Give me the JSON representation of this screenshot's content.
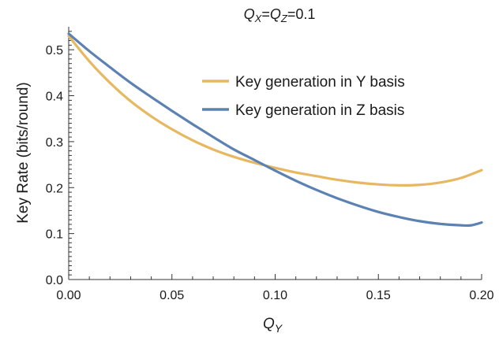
{
  "chart_data": {
    "type": "line",
    "title_parts": [
      {
        "text": "Q",
        "italic": true
      },
      {
        "text": "X",
        "italic": true,
        "sub": true
      },
      {
        "text": "=",
        "italic": false
      },
      {
        "text": "Q",
        "italic": true
      },
      {
        "text": "Z",
        "italic": true,
        "sub": true
      },
      {
        "text": "=0.1",
        "italic": false
      }
    ],
    "xlabel_main": "Q",
    "xlabel_sub": "Y",
    "ylabel": "Key Rate (bits/round)",
    "xlim": [
      0,
      0.2
    ],
    "ylim": [
      0,
      0.55
    ],
    "x_ticks": [
      "0.00",
      "0.05",
      "0.10",
      "0.15",
      "0.20"
    ],
    "y_ticks": [
      "0.0",
      "0.1",
      "0.2",
      "0.3",
      "0.4",
      "0.5"
    ],
    "legend_position": "top-right",
    "series": [
      {
        "name": "Key generation in Y basis",
        "color": "#e6b862",
        "x": [
          0.0,
          0.01,
          0.02,
          0.03,
          0.04,
          0.05,
          0.06,
          0.07,
          0.08,
          0.09,
          0.1,
          0.11,
          0.12,
          0.13,
          0.14,
          0.15,
          0.16,
          0.17,
          0.18,
          0.19,
          0.2
        ],
        "y": [
          0.53,
          0.475,
          0.428,
          0.388,
          0.355,
          0.327,
          0.303,
          0.283,
          0.267,
          0.254,
          0.243,
          0.233,
          0.225,
          0.217,
          0.211,
          0.207,
          0.205,
          0.206,
          0.211,
          0.221,
          0.238
        ]
      },
      {
        "name": "Key generation in Z basis",
        "color": "#5c81b3",
        "x": [
          0.0,
          0.01,
          0.02,
          0.03,
          0.04,
          0.05,
          0.06,
          0.07,
          0.08,
          0.09,
          0.1,
          0.11,
          0.12,
          0.13,
          0.14,
          0.15,
          0.16,
          0.17,
          0.18,
          0.19,
          0.195,
          0.2
        ],
        "y": [
          0.535,
          0.497,
          0.462,
          0.428,
          0.397,
          0.367,
          0.338,
          0.31,
          0.283,
          0.26,
          0.237,
          0.215,
          0.195,
          0.177,
          0.161,
          0.147,
          0.136,
          0.127,
          0.121,
          0.118,
          0.118,
          0.124
        ]
      }
    ]
  }
}
